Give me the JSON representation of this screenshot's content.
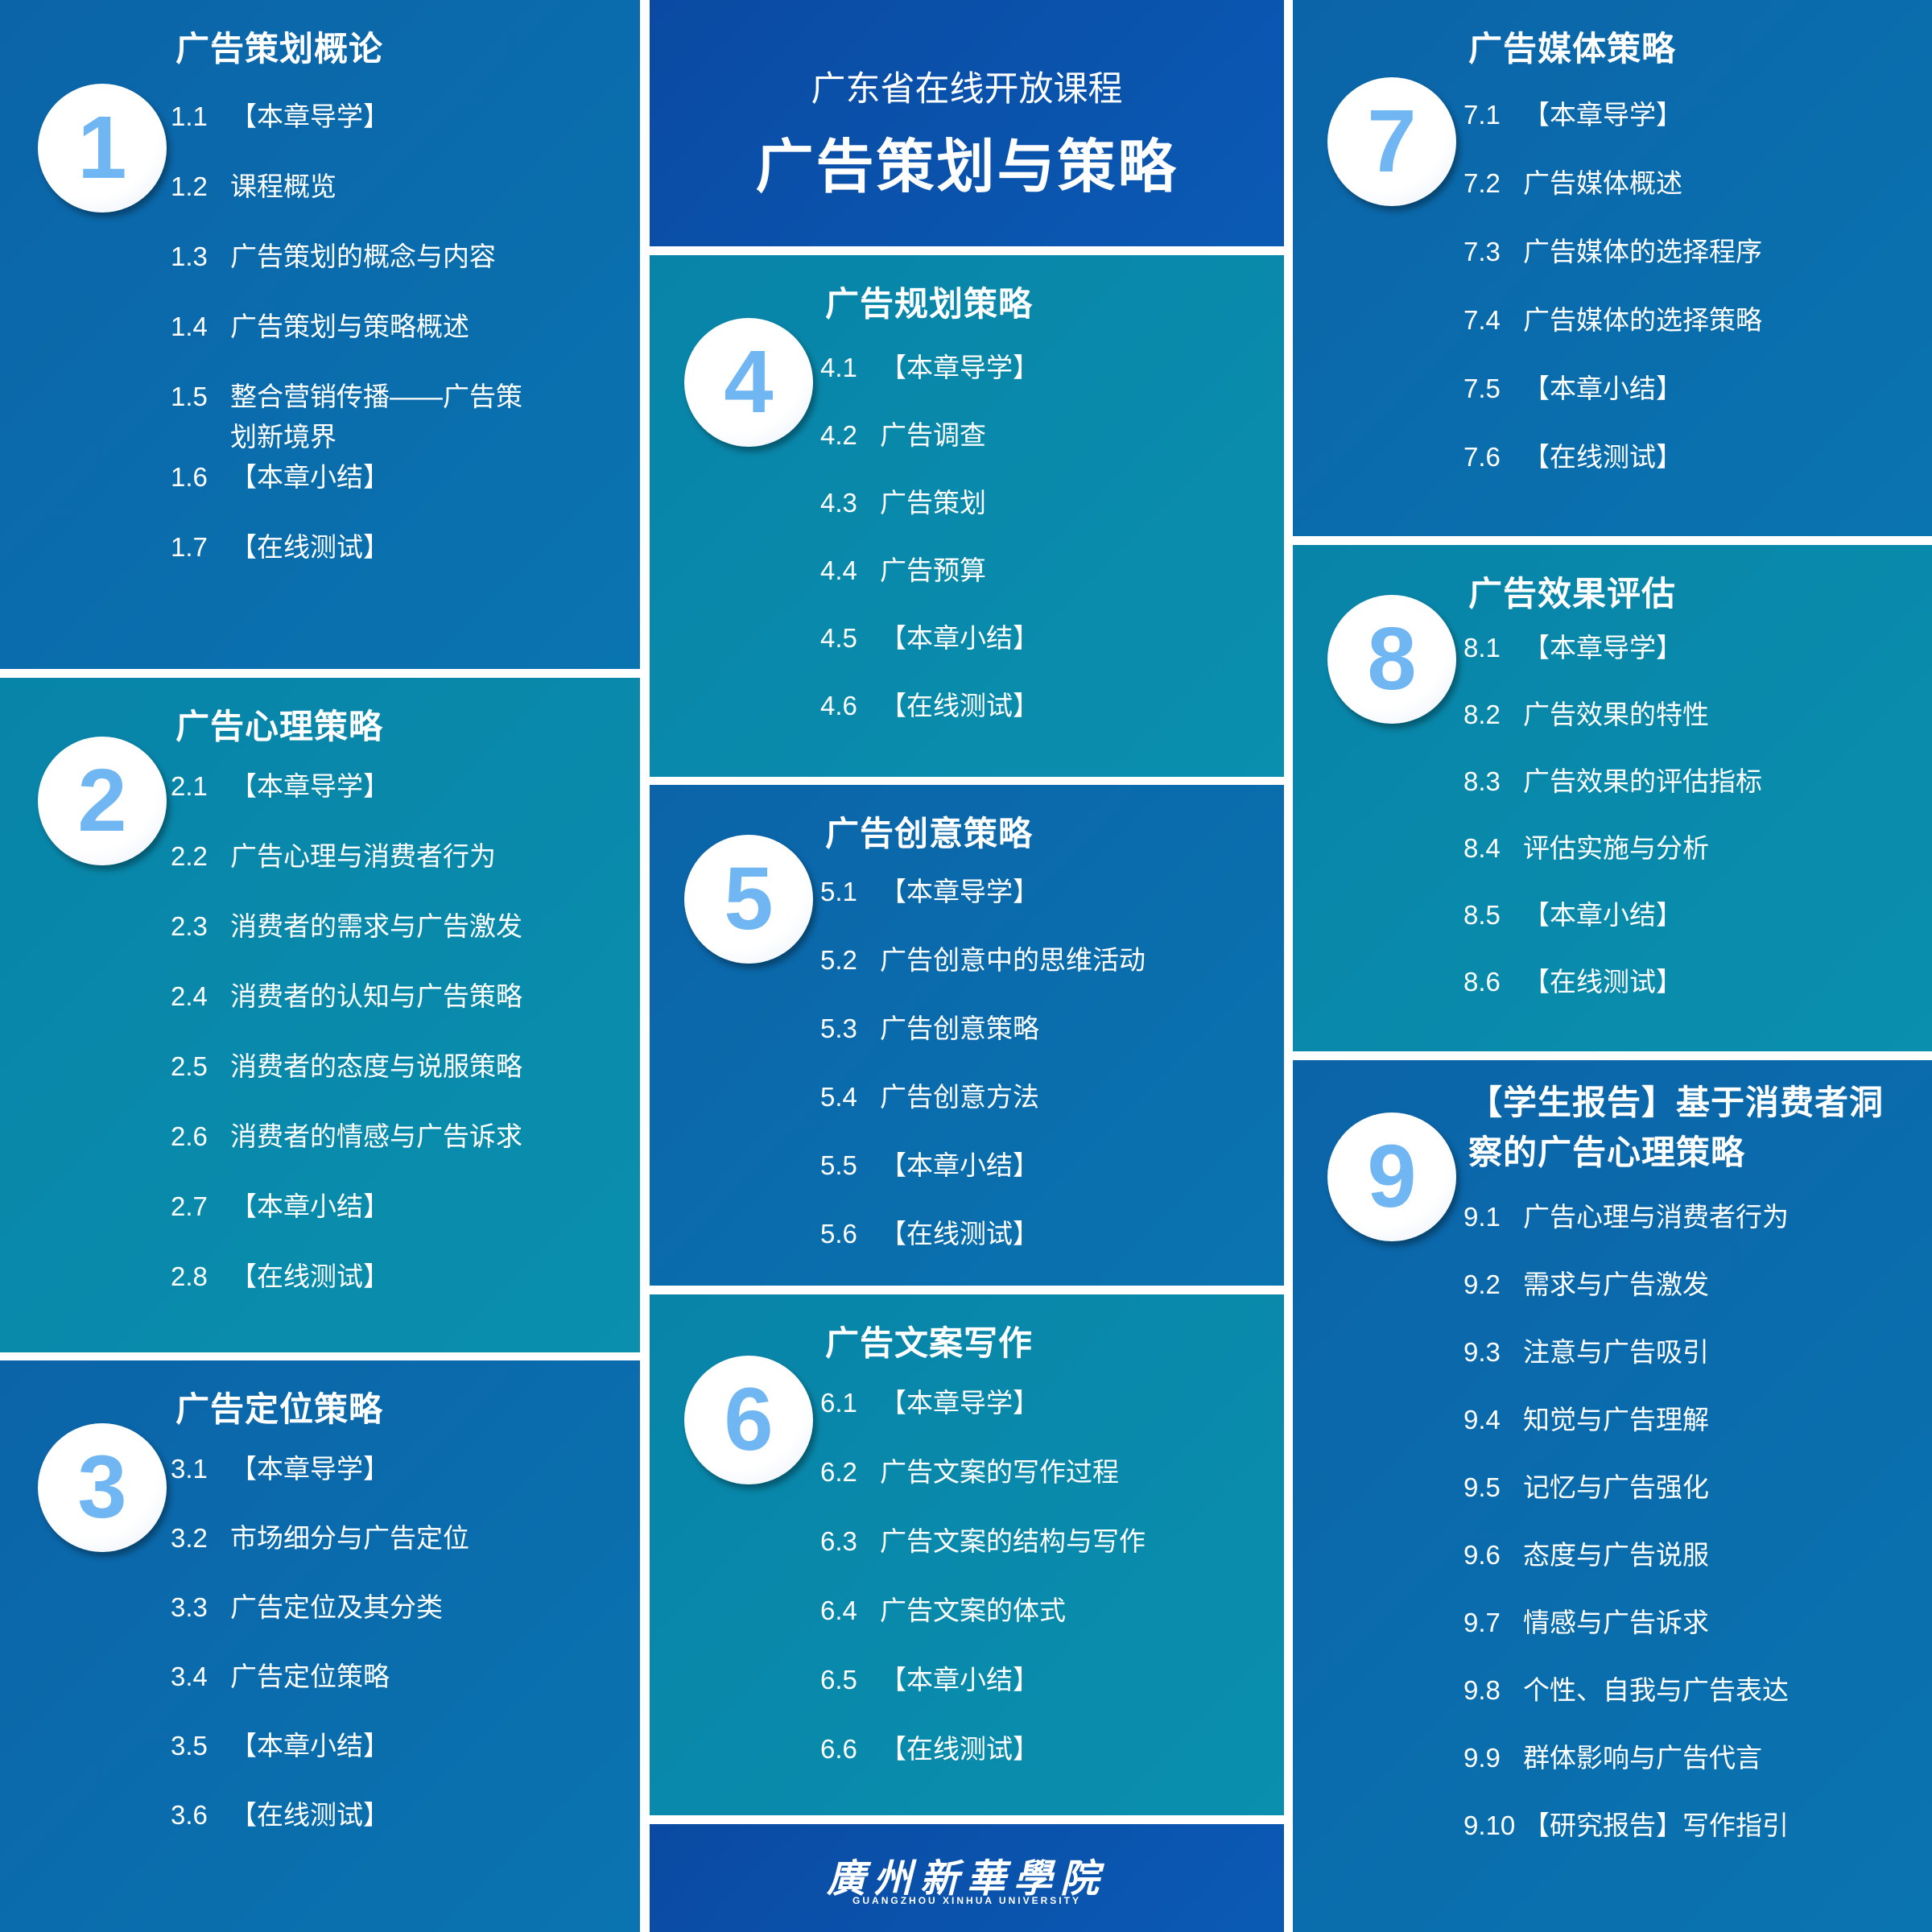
{
  "header": {
    "subtitle": "广东省在线开放课程",
    "title": "广告策划与策略"
  },
  "chapters": [
    {
      "number": "1",
      "title": "广告策划概论",
      "lessons": [
        {
          "number": "1.1",
          "text": "【本章导学】"
        },
        {
          "number": "1.2",
          "text": "课程概览"
        },
        {
          "number": "1.3",
          "text": "广告策划的概念与内容"
        },
        {
          "number": "1.4",
          "text": "广告策划与策略概述"
        },
        {
          "number": "1.5",
          "text": "整合营销传播——广告策划新境界"
        },
        {
          "number": "1.6",
          "text": "【本章小结】"
        },
        {
          "number": "1.7",
          "text": "【在线测试】"
        }
      ]
    },
    {
      "number": "2",
      "title": "广告心理策略",
      "lessons": [
        {
          "number": "2.1",
          "text": "【本章导学】"
        },
        {
          "number": "2.2",
          "text": "广告心理与消费者行为"
        },
        {
          "number": "2.3",
          "text": "消费者的需求与广告激发"
        },
        {
          "number": "2.4",
          "text": "消费者的认知与广告策略"
        },
        {
          "number": "2.5",
          "text": "消费者的态度与说服策略"
        },
        {
          "number": "2.6",
          "text": "消费者的情感与广告诉求"
        },
        {
          "number": "2.7",
          "text": "【本章小结】"
        },
        {
          "number": "2.8",
          "text": "【在线测试】"
        }
      ]
    },
    {
      "number": "3",
      "title": "广告定位策略",
      "lessons": [
        {
          "number": "3.1",
          "text": "【本章导学】"
        },
        {
          "number": "3.2",
          "text": "市场细分与广告定位"
        },
        {
          "number": "3.3",
          "text": "广告定位及其分类"
        },
        {
          "number": "3.4",
          "text": "广告定位策略"
        },
        {
          "number": "3.5",
          "text": "【本章小结】"
        },
        {
          "number": "3.6",
          "text": "【在线测试】"
        }
      ]
    },
    {
      "number": "4",
      "title": "广告规划策略",
      "lessons": [
        {
          "number": "4.1",
          "text": "【本章导学】"
        },
        {
          "number": "4.2",
          "text": "广告调查"
        },
        {
          "number": "4.3",
          "text": "广告策划"
        },
        {
          "number": "4.4",
          "text": "广告预算"
        },
        {
          "number": "4.5",
          "text": "【本章小结】"
        },
        {
          "number": "4.6",
          "text": "【在线测试】"
        }
      ]
    },
    {
      "number": "5",
      "title": "广告创意策略",
      "lessons": [
        {
          "number": "5.1",
          "text": "【本章导学】"
        },
        {
          "number": "5.2",
          "text": "广告创意中的思维活动"
        },
        {
          "number": "5.3",
          "text": "广告创意策略"
        },
        {
          "number": "5.4",
          "text": "广告创意方法"
        },
        {
          "number": "5.5",
          "text": "【本章小结】"
        },
        {
          "number": "5.6",
          "text": "【在线测试】"
        }
      ]
    },
    {
      "number": "6",
      "title": "广告文案写作",
      "lessons": [
        {
          "number": "6.1",
          "text": "【本章导学】"
        },
        {
          "number": "6.2",
          "text": "广告文案的写作过程"
        },
        {
          "number": "6.3",
          "text": "广告文案的结构与写作"
        },
        {
          "number": "6.4",
          "text": "广告文案的体式"
        },
        {
          "number": "6.5",
          "text": "【本章小结】"
        },
        {
          "number": "6.6",
          "text": "【在线测试】"
        }
      ]
    },
    {
      "number": "7",
      "title": "广告媒体策略",
      "lessons": [
        {
          "number": "7.1",
          "text": "【本章导学】"
        },
        {
          "number": "7.2",
          "text": "广告媒体概述"
        },
        {
          "number": "7.3",
          "text": "广告媒体的选择程序"
        },
        {
          "number": "7.4",
          "text": "广告媒体的选择策略"
        },
        {
          "number": "7.5",
          "text": "【本章小结】"
        },
        {
          "number": "7.6",
          "text": "【在线测试】"
        }
      ]
    },
    {
      "number": "8",
      "title": "广告效果评估",
      "lessons": [
        {
          "number": "8.1",
          "text": "【本章导学】"
        },
        {
          "number": "8.2",
          "text": "广告效果的特性"
        },
        {
          "number": "8.3",
          "text": "广告效果的评估指标"
        },
        {
          "number": "8.4",
          "text": "评估实施与分析"
        },
        {
          "number": "8.5",
          "text": "【本章小结】"
        },
        {
          "number": "8.6",
          "text": "【在线测试】"
        }
      ]
    },
    {
      "number": "9",
      "title": "【学生报告】基于消费者洞察的广告心理策略",
      "lessons": [
        {
          "number": "9.1",
          "text": "广告心理与消费者行为"
        },
        {
          "number": "9.2",
          "text": "需求与广告激发"
        },
        {
          "number": "9.3",
          "text": "注意与广告吸引"
        },
        {
          "number": "9.4",
          "text": "知觉与广告理解"
        },
        {
          "number": "9.5",
          "text": "记忆与广告强化"
        },
        {
          "number": "9.6",
          "text": "态度与广告说服"
        },
        {
          "number": "9.7",
          "text": "情感与广告诉求"
        },
        {
          "number": "9.8",
          "text": "个性、自我与广告表达"
        },
        {
          "number": "9.9",
          "text": "群体影响与广告代言"
        },
        {
          "number": "9.10",
          "text": "【研究报告】写作指引"
        }
      ]
    }
  ],
  "footer": {
    "name": "廣州新華學院",
    "english": "GUANGZHOU XINHUA UNIVERSITY"
  }
}
